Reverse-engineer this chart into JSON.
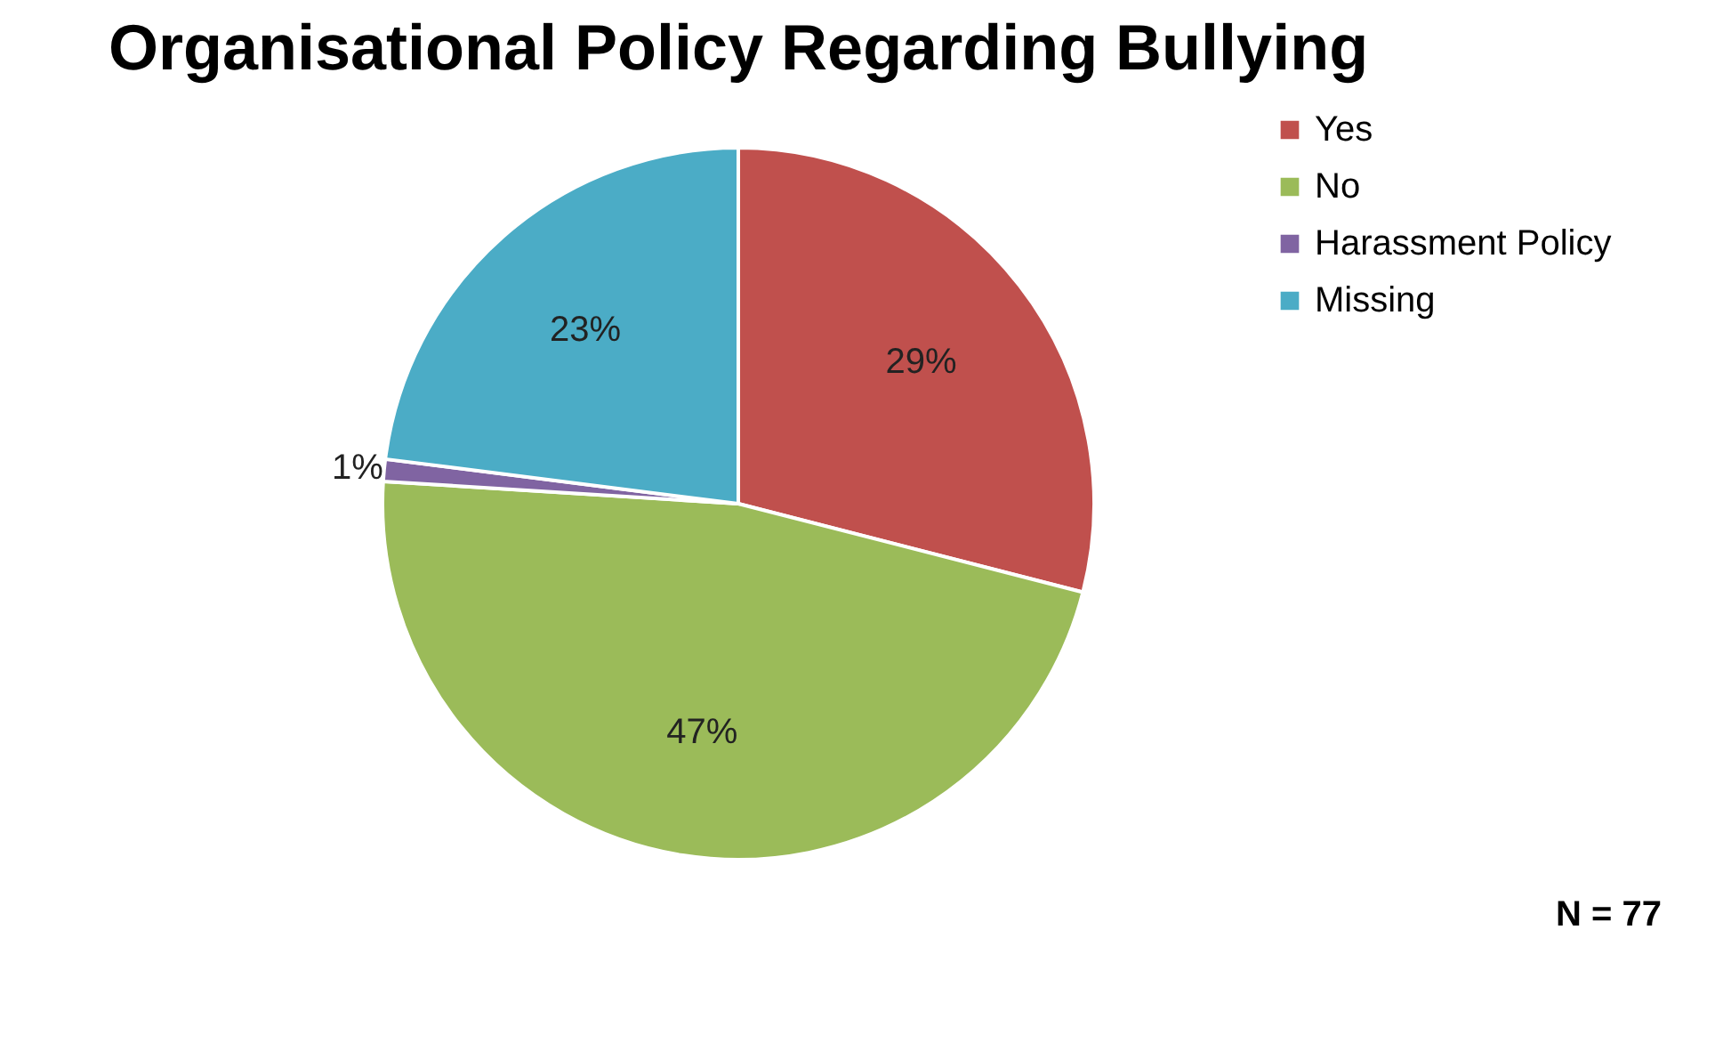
{
  "chart_data": {
    "type": "pie",
    "title": "Organisational Policy Regarding Bullying",
    "categories": [
      "Yes",
      "No",
      "Harassment Policy",
      "Missing"
    ],
    "values": [
      29,
      47,
      1,
      23
    ],
    "colors": [
      "#c0504d",
      "#9bbb59",
      "#8064a2",
      "#4bacc6"
    ],
    "value_labels": [
      "29%",
      "47%",
      "1%",
      "23%"
    ],
    "legend": "right",
    "annotations": [
      "N = 77"
    ]
  }
}
